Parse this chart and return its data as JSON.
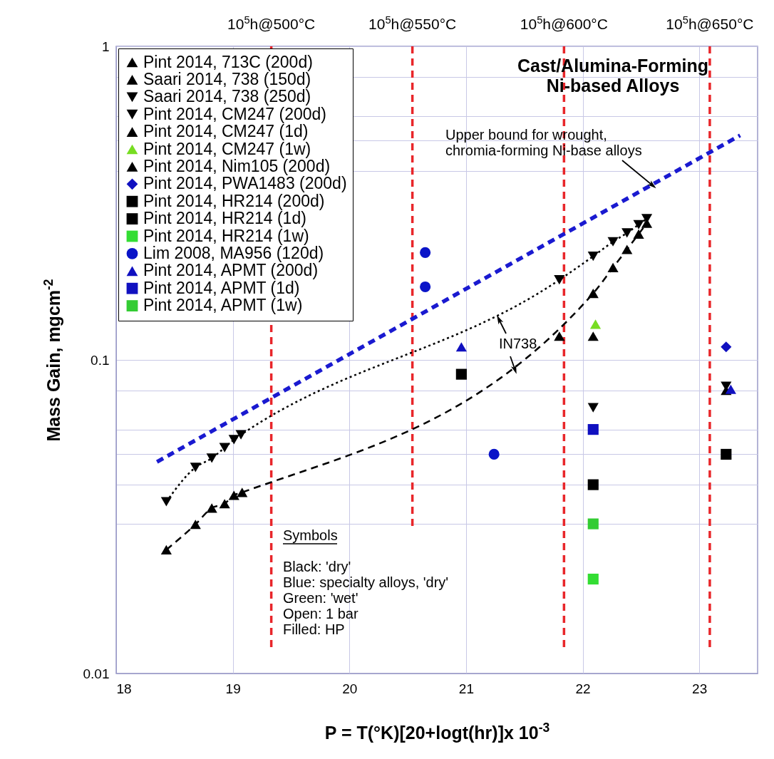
{
  "chart_data": {
    "type": "scatter",
    "title": "Cast/Alumina-Forming Ni-based Alloys",
    "xlabel": "P = T(°K)[20+logt(hr)]x 10$^{-3}$",
    "ylabel": "Mass Gain, mgcm$^{-2}$",
    "xlim": [
      18,
      23.5
    ],
    "xticks": [
      18,
      19,
      20,
      21,
      22,
      23
    ],
    "ylim": [
      0.01,
      1
    ],
    "yticks": [
      0.01,
      {
        "value": 0.03,
        "label": null
      },
      {
        "value": 0.04,
        "label": null
      },
      {
        "value": 0.05,
        "label": null
      },
      {
        "value": 0.06,
        "label": null
      },
      {
        "value": 0.08,
        "label": null
      },
      0.1,
      {
        "value": 0.4,
        "label": null
      },
      {
        "value": 0.5,
        "label": null
      },
      {
        "value": 0.6,
        "label": null
      },
      {
        "value": 0.8,
        "label": null
      },
      1
    ],
    "log": true,
    "grid": true,
    "legend": "top left",
    "series": [
      {
        "name": "Pint 2014, 713C (200d)",
        "type": "scatter",
        "marker": "triangle",
        "color": "#000000",
        "x": [
          21.8
        ],
        "values": [
          0.119
        ]
      },
      {
        "name": "Saari 2014, 738 (150d)",
        "type": "line",
        "marker": "triangle",
        "line_style": "dashed",
        "color": "#000000",
        "x": [
          18.43,
          18.68,
          18.82,
          18.93,
          19.01,
          19.08,
          22.09,
          22.26,
          22.38,
          22.48,
          22.55
        ],
        "values": [
          0.0248,
          0.0299,
          0.0337,
          0.0348,
          0.037,
          0.0378,
          0.163,
          0.197,
          0.225,
          0.252,
          0.273
        ]
      },
      {
        "name": "Saari 2014, 738 (250d)",
        "type": "line",
        "marker": "triangle-down",
        "line_style": "dotted",
        "color": "#000000",
        "x": [
          18.43,
          18.68,
          18.82,
          18.93,
          19.01,
          19.07,
          21.8,
          22.09,
          22.26,
          22.38,
          22.48,
          22.55
        ],
        "values": [
          0.0353,
          0.0454,
          0.0486,
          0.0525,
          0.0557,
          0.0577,
          0.18,
          0.214,
          0.238,
          0.254,
          0.27,
          0.282
        ]
      },
      {
        "name": "Pint 2014, CM247 (200d)",
        "type": "scatter",
        "marker": "triangle-down",
        "color": "#000000",
        "x": [
          22.09,
          23.23
        ],
        "values": [
          0.0704,
          0.0824
        ]
      },
      {
        "name": "Pint 2014, CM247 (1d)",
        "type": "scatter",
        "marker": "triangle",
        "color": "#000000",
        "x": [
          22.09
        ],
        "values": [
          0.119
        ]
      },
      {
        "name": "Pint 2014, CM247 (1w)",
        "type": "scatter",
        "marker": "triangle",
        "color": "#77dd22",
        "x": [
          22.11
        ],
        "values": [
          0.13
        ]
      },
      {
        "name": "Pint 2014, Nim105 (200d)",
        "type": "scatter",
        "marker": "triangle",
        "color": "#000000",
        "x": [
          23.23
        ],
        "values": [
          0.08
        ]
      },
      {
        "name": "Pint 2014, PWA1483 (200d)",
        "type": "scatter",
        "marker": "diamond",
        "color": "#1010c0",
        "x": [
          23.23
        ],
        "values": [
          0.11
        ]
      },
      {
        "name": "Pint 2014, HR214 (200d)",
        "type": "scatter",
        "marker": "square",
        "color": "#000000",
        "x": [
          20.96,
          22.09
        ],
        "values": [
          0.09,
          0.04
        ]
      },
      {
        "name": "Pint 2014, HR214 (1d)",
        "type": "scatter",
        "marker": "square",
        "color": "#000000",
        "x": [
          23.23
        ],
        "values": [
          0.05
        ]
      },
      {
        "name": "Pint 2014, HR214 (1w)",
        "type": "scatter",
        "marker": "square",
        "color": "#33dd33",
        "x": [
          22.09
        ],
        "values": [
          0.02
        ]
      },
      {
        "name": "Lim 2008, MA956 (120d)",
        "type": "scatter",
        "marker": "circle",
        "color": "#0a14c8",
        "x": [
          20.65,
          20.65,
          21.24
        ],
        "values": [
          0.22,
          0.171,
          0.05
        ]
      },
      {
        "name": "Pint 2014, APMT (200d)",
        "type": "scatter",
        "marker": "triangle",
        "color": "#1010c0",
        "x": [
          20.96,
          23.27
        ],
        "values": [
          0.11,
          0.0806
        ]
      },
      {
        "name": "Pint 2014, APMT (1d)",
        "type": "scatter",
        "marker": "square",
        "color": "#1010c0",
        "x": [
          22.09
        ],
        "values": [
          0.06
        ]
      },
      {
        "name": "Pint 2014, APMT (1w)",
        "type": "scatter",
        "marker": "square",
        "color": "#33cc33",
        "x": [
          22.09
        ],
        "values": [
          0.03
        ]
      },
      {
        "type": "line",
        "marker": "none",
        "line_style": "dashed",
        "color": "#1a1ad0",
        "x": [
          18.35,
          23.35
        ],
        "values": [
          0.0473,
          0.52
        ]
      }
    ],
    "ref_lines": [
      {
        "axis": "x",
        "value": 19.33,
        "label": "10$^{5}$h@500°C",
        "color": "#e8262a",
        "line_style": "dashed"
      },
      {
        "axis": "x",
        "value": 20.54,
        "label": "10$^{5}$h@550°C",
        "color": "#e8262a",
        "line_style": "dashed"
      },
      {
        "axis": "x",
        "value": 21.84,
        "label": "10$^{5}$h@600°C",
        "color": "#e8262a",
        "line_style": "dashed"
      },
      {
        "axis": "x",
        "value": 23.09,
        "label": "10$^{5}$h@650°C",
        "color": "#e8262a",
        "line_style": "dashed"
      }
    ],
    "annotations": [
      {
        "text": "Upper bound for wrought,\nchromia-forming Ni-base alloys",
        "x": 22.6,
        "y": 0.36
      },
      {
        "text": "IN738",
        "x": 21.42,
        "y": 0.093
      },
      "Symbols",
      "Black: 'dry'",
      "Blue: specialty alloys, 'dry'",
      "Green: 'wet'",
      "Open: 1 bar",
      "Filled: HP"
    ]
  }
}
